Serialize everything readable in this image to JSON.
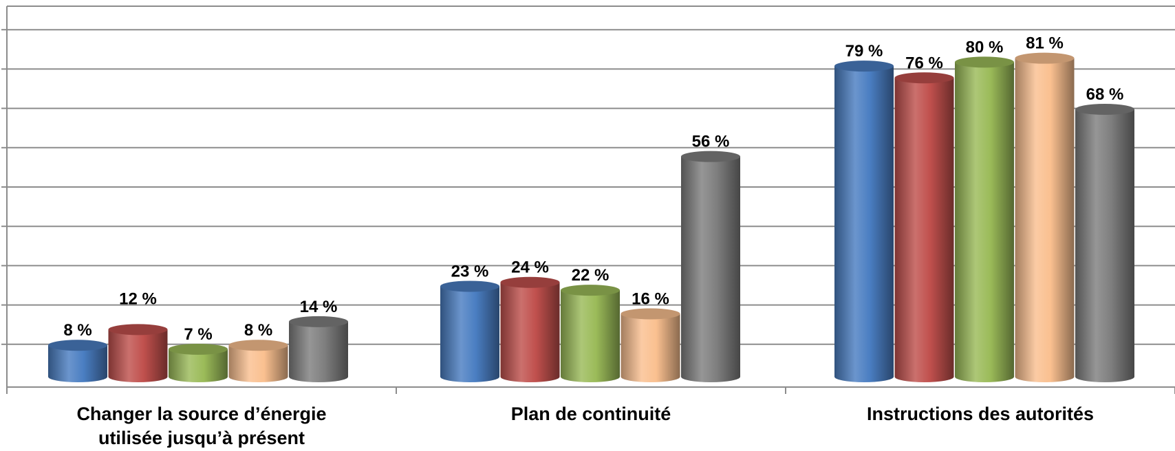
{
  "chart_data": {
    "type": "bar",
    "style": "3d-cylinder",
    "categories": [
      [
        "Changer la source d’énergie",
        "utilisée jusqu’à présent"
      ],
      [
        "Plan de continuité"
      ],
      [
        "Instructions des autorités"
      ]
    ],
    "series": [
      {
        "color": "#4a7ec2",
        "values": [
          8,
          23,
          79
        ]
      },
      {
        "color": "#c0504d",
        "values": [
          12,
          24,
          76
        ]
      },
      {
        "color": "#9bbb59",
        "values": [
          7,
          22,
          80
        ]
      },
      {
        "color": "#fac090",
        "values": [
          8,
          16,
          81
        ]
      },
      {
        "color": "#7f7f7f",
        "values": [
          14,
          56,
          68
        ]
      }
    ],
    "value_labels": [
      [
        "8 %",
        "23 %",
        "79 %"
      ],
      [
        "12 %",
        "24 %",
        "76 %"
      ],
      [
        "7 %",
        "22 %",
        "80 %"
      ],
      [
        "8 %",
        "16 %",
        "81 %"
      ],
      [
        "14 %",
        "56 %",
        "68 %"
      ]
    ],
    "ylim": [
      0,
      90
    ],
    "grid": true,
    "legend": "none"
  }
}
